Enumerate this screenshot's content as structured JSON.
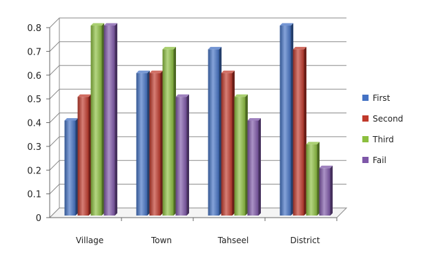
{
  "chart_data": {
    "type": "bar",
    "title": "",
    "xlabel": "",
    "ylabel": "",
    "categories": [
      "Village",
      "Town",
      "Tahseel",
      "District"
    ],
    "ylim": [
      0,
      0.8
    ],
    "yticks": [
      "0",
      "0.1",
      "0.2",
      "0.3",
      "0.4",
      "0.5",
      "0.6",
      "0.7",
      "0.8"
    ],
    "grid": true,
    "legend_position": "right",
    "series": [
      {
        "name": "First",
        "color": "#4472c4",
        "values": [
          0.4,
          0.6,
          0.7,
          0.8
        ]
      },
      {
        "name": "Second",
        "color": "#c0392b",
        "values": [
          0.5,
          0.6,
          0.6,
          0.7
        ]
      },
      {
        "name": "Third",
        "color": "#8cbf3f",
        "values": [
          0.8,
          0.7,
          0.5,
          0.3
        ]
      },
      {
        "name": "Fail",
        "color": "#7e57a8",
        "values": [
          0.8,
          0.5,
          0.4,
          0.2
        ]
      }
    ]
  }
}
